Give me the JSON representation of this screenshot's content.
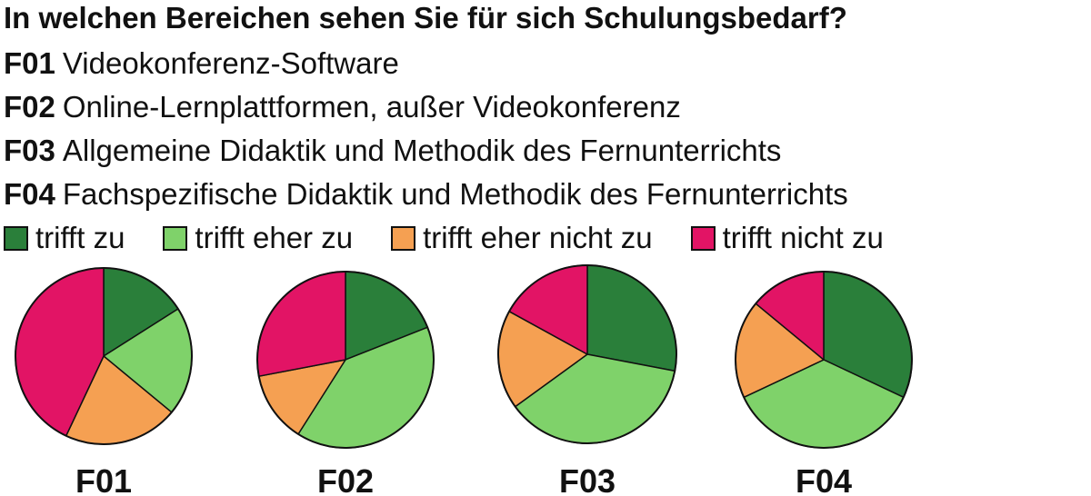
{
  "title": "In welchen Bereichen sehen Sie für sich Schulungsbedarf?",
  "items": [
    {
      "code": "F01",
      "text": "Videokonferenz-Software"
    },
    {
      "code": "F02",
      "text": "Online-Lernplattformen, außer Videokonferenz"
    },
    {
      "code": "F03",
      "text": "Allgemeine Didaktik und Methodik des Fernunterrichts"
    },
    {
      "code": "F04",
      "text": "Fachspezifische Didaktik und Methodik des Fernunterrichts"
    }
  ],
  "chart_data": {
    "type": "pie",
    "legend_position": "top",
    "categories": [
      "trifft zu",
      "trifft eher zu",
      "trifft eher nicht zu",
      "trifft nicht zu"
    ],
    "colors": [
      "#2a7f3a",
      "#7fd26a",
      "#f5a052",
      "#e21465"
    ],
    "pies": [
      {
        "label": "F01",
        "values": [
          16,
          20,
          21,
          43
        ]
      },
      {
        "label": "F02",
        "values": [
          19,
          40,
          13,
          28
        ]
      },
      {
        "label": "F03",
        "values": [
          28,
          37,
          18,
          17
        ]
      },
      {
        "label": "F04",
        "values": [
          32,
          36,
          18,
          14
        ]
      }
    ]
  }
}
